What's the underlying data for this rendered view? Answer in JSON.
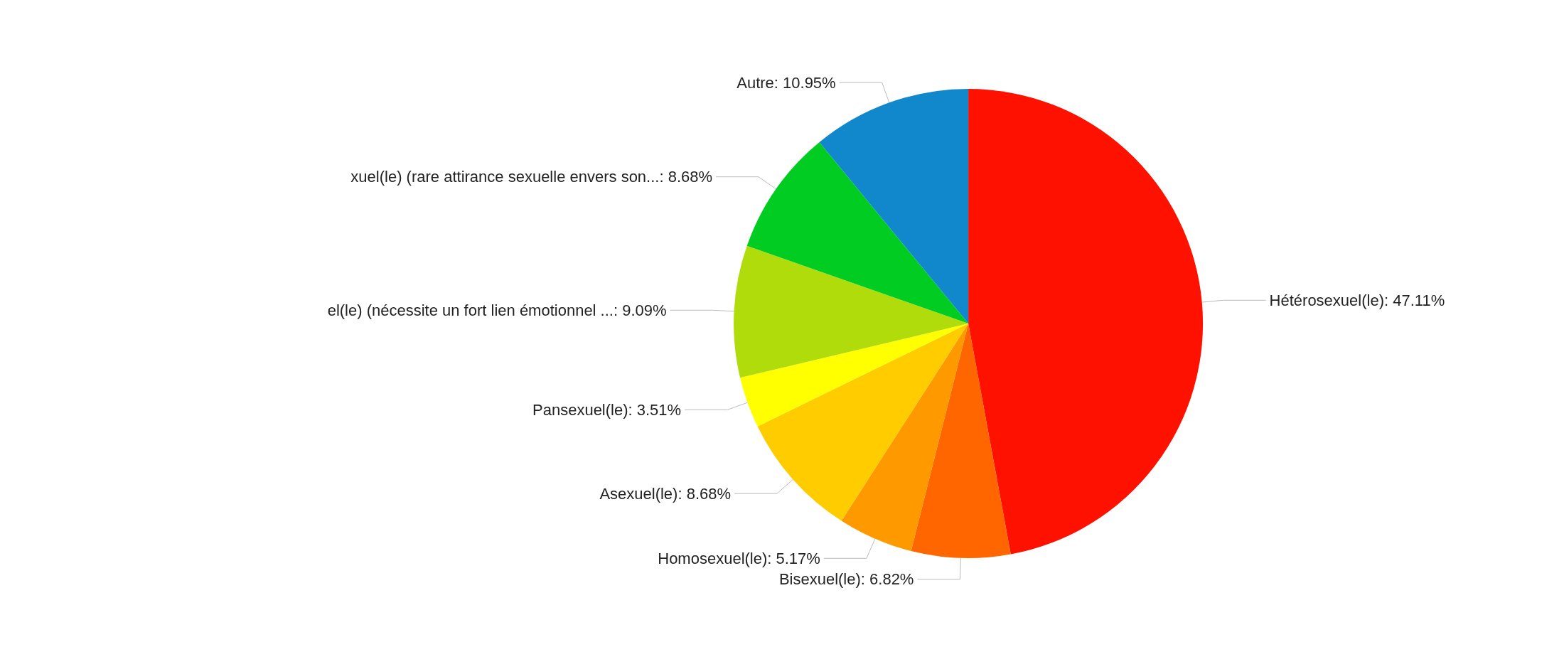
{
  "chart_data": {
    "type": "pie",
    "categories": [
      "Hétérosexuel(le)",
      "Bisexuel(le)",
      "Homosexuel(le)",
      "Asexuel(le)",
      "Pansexuel(le)",
      "el(le) (nécessite un fort lien émotionnel ...",
      "xuel(le) (rare attirance sexuelle envers son...",
      "Autre"
    ],
    "values": [
      47.11,
      6.82,
      5.17,
      8.68,
      3.51,
      9.09,
      8.68,
      10.95
    ],
    "value_labels": [
      "47.11%",
      "6.82%",
      "5.17%",
      "8.68%",
      "3.51%",
      "9.09%",
      "8.68%",
      "10.95%"
    ],
    "colors": [
      "#ff1100",
      "#ff6600",
      "#ff9900",
      "#ffcc00",
      "#ffff00",
      "#b0dc0b",
      "#00cc22",
      "#1188cc"
    ],
    "legend": false
  }
}
